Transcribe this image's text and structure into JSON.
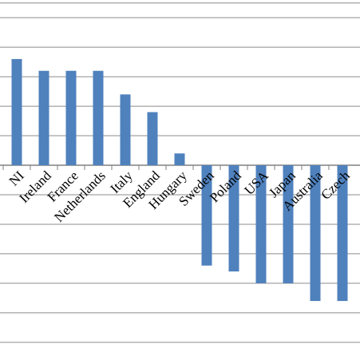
{
  "chart_data": {
    "type": "bar",
    "categories": [
      "NI",
      "Ireland",
      "France",
      "Netherlands",
      "Italy",
      "England",
      "Hungary",
      "Sweden",
      "Poland",
      "USA",
      "Japan",
      "Australia",
      "Czech"
    ],
    "values": [
      3.6,
      3.2,
      3.2,
      3.2,
      2.4,
      1.8,
      0.4,
      -3.4,
      -3.6,
      -4,
      -4,
      -4.6,
      -4.6
    ],
    "color": "#4f81bd",
    "ylim": [
      -6.6,
      5.6
    ],
    "yticks": [
      -6,
      -5,
      -4,
      -3,
      -2,
      -1,
      0,
      1,
      2,
      3,
      4,
      5,
      5.5
    ],
    "grid": true
  }
}
